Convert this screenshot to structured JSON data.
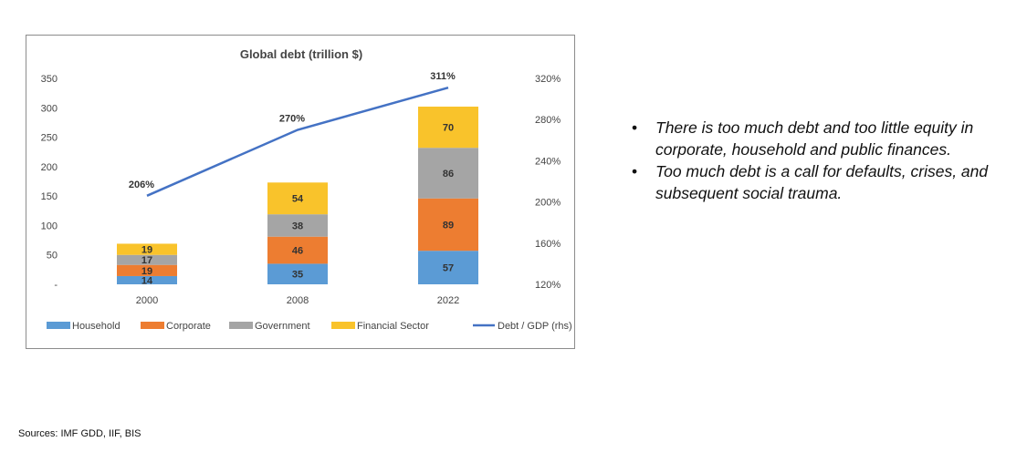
{
  "chart_data": {
    "type": "bar",
    "stacked": true,
    "title": "Global debt (trillion $)",
    "categories": [
      "2000",
      "2008",
      "2022"
    ],
    "series": [
      {
        "name": "Household",
        "values": [
          14,
          35,
          57
        ],
        "color": "#5b9bd5"
      },
      {
        "name": "Corporate",
        "values": [
          19,
          46,
          89
        ],
        "color": "#ed7d31"
      },
      {
        "name": "Government",
        "values": [
          17,
          38,
          86
        ],
        "color": "#a5a5a5"
      },
      {
        "name": "Financial Sector",
        "values": [
          19,
          54,
          70
        ],
        "color": "#f9c32b"
      }
    ],
    "line_series": {
      "name": "Debt / GDP (rhs)",
      "values": [
        206,
        270,
        311
      ],
      "labels": [
        "206%",
        "270%",
        "311%"
      ],
      "color": "#4472c4",
      "axis": "right"
    },
    "y_left": {
      "min": 0,
      "max": 350,
      "ticks": [
        "-",
        "50",
        "100",
        "150",
        "200",
        "250",
        "300",
        "350"
      ]
    },
    "y_right": {
      "min": 120,
      "max": 320,
      "ticks": [
        "120%",
        "160%",
        "200%",
        "240%",
        "280%",
        "320%"
      ]
    },
    "legend_position": "bottom",
    "grid": false
  },
  "bullets": [
    "There is too much debt and too little equity in corporate, household and public finances.",
    "Too much debt is a call for defaults, crises, and subsequent social trauma."
  ],
  "bullet_marker": "•",
  "source": "Sources: IMF GDD, IIF, BIS"
}
